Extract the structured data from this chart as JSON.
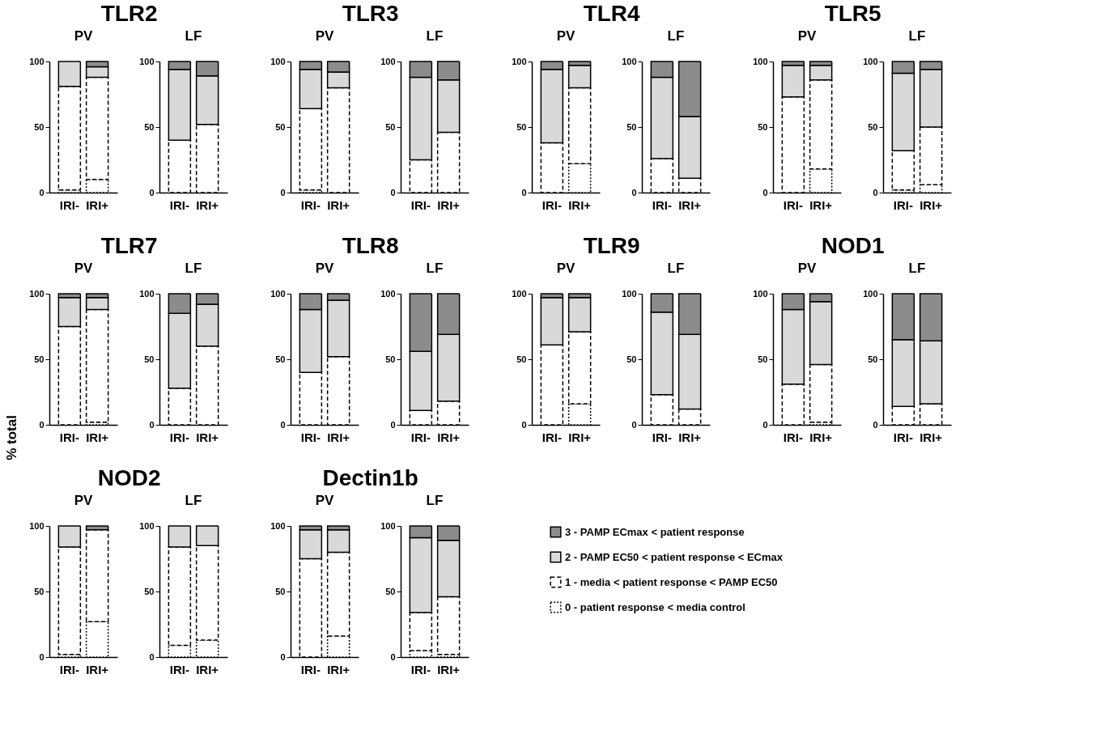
{
  "chart_data": [
    {
      "type": "bar",
      "title": "TLR2",
      "subtitle": "PV",
      "stacked": true,
      "legend": "bottom right",
      "categories": [
        "IRI-",
        "IRI+"
      ],
      "ylim": [
        0,
        100
      ],
      "yticks": [
        0,
        50,
        100
      ],
      "series": [
        {
          "name": "0 - patient response < media control",
          "color": "#ffffff",
          "line_style": "dotted",
          "values": [
            2,
            10
          ]
        },
        {
          "name": "1 - media < patient response < PAMP EC50",
          "color": "#ffffff",
          "line_style": "dashed",
          "values": [
            79,
            78
          ]
        },
        {
          "name": "2 - PAMP EC50 < patient response < ECmax",
          "color": "#d9d9d9",
          "line_style": "solid",
          "values": [
            19,
            8
          ]
        },
        {
          "name": "3 - PAMP ECmax < patient response",
          "color": "#8c8c8c",
          "line_style": "solid",
          "values": [
            0,
            4
          ]
        }
      ]
    },
    {
      "type": "bar",
      "subtitle": "LF",
      "stacked": true,
      "categories": [
        "IRI-",
        "IRI+"
      ],
      "ylim": [
        0,
        100
      ],
      "yticks": [
        0,
        50,
        100
      ],
      "series": [
        {
          "name": "0 - patient response < media control",
          "color": "#ffffff",
          "line_style": "dotted",
          "values": [
            0,
            0
          ]
        },
        {
          "name": "1 - media < patient response < PAMP EC50",
          "color": "#ffffff",
          "line_style": "dashed",
          "values": [
            40,
            52
          ]
        },
        {
          "name": "2 - PAMP EC50 < patient response < ECmax",
          "color": "#d9d9d9",
          "line_style": "solid",
          "values": [
            54,
            37
          ]
        },
        {
          "name": "3 - PAMP ECmax < patient response",
          "color": "#8c8c8c",
          "line_style": "solid",
          "values": [
            6,
            11
          ]
        }
      ]
    },
    {
      "type": "bar",
      "title": "TLR3",
      "subtitle": "PV",
      "stacked": true,
      "categories": [
        "IRI-",
        "IRI+"
      ],
      "ylim": [
        0,
        100
      ],
      "yticks": [
        0,
        50,
        100
      ],
      "series": [
        {
          "name": "0 - patient response < media control",
          "color": "#ffffff",
          "line_style": "dotted",
          "values": [
            2,
            0
          ]
        },
        {
          "name": "1 - media < patient response < PAMP EC50",
          "color": "#ffffff",
          "line_style": "dashed",
          "values": [
            62,
            80
          ]
        },
        {
          "name": "2 - PAMP EC50 < patient response < ECmax",
          "color": "#d9d9d9",
          "line_style": "solid",
          "values": [
            30,
            12
          ]
        },
        {
          "name": "3 - PAMP ECmax < patient response",
          "color": "#8c8c8c",
          "line_style": "solid",
          "values": [
            6,
            8
          ]
        }
      ]
    },
    {
      "type": "bar",
      "subtitle": "LF",
      "stacked": true,
      "categories": [
        "IRI-",
        "IRI+"
      ],
      "ylim": [
        0,
        100
      ],
      "yticks": [
        0,
        50,
        100
      ],
      "series": [
        {
          "name": "0 - patient response < media control",
          "color": "#ffffff",
          "line_style": "dotted",
          "values": [
            0,
            0
          ]
        },
        {
          "name": "1 - media < patient response < PAMP EC50",
          "color": "#ffffff",
          "line_style": "dashed",
          "values": [
            25,
            46
          ]
        },
        {
          "name": "2 - PAMP EC50 < patient response < ECmax",
          "color": "#d9d9d9",
          "line_style": "solid",
          "values": [
            63,
            40
          ]
        },
        {
          "name": "3 - PAMP ECmax < patient response",
          "color": "#8c8c8c",
          "line_style": "solid",
          "values": [
            12,
            14
          ]
        }
      ]
    },
    {
      "type": "bar",
      "title": "TLR4",
      "subtitle": "PV",
      "stacked": true,
      "categories": [
        "IRI-",
        "IRI+"
      ],
      "ylim": [
        0,
        100
      ],
      "yticks": [
        0,
        50,
        100
      ],
      "series": [
        {
          "name": "0 - patient response < media control",
          "color": "#ffffff",
          "line_style": "dotted",
          "values": [
            0,
            22
          ]
        },
        {
          "name": "1 - media < patient response < PAMP EC50",
          "color": "#ffffff",
          "line_style": "dashed",
          "values": [
            38,
            58
          ]
        },
        {
          "name": "2 - PAMP EC50 < patient response < ECmax",
          "color": "#d9d9d9",
          "line_style": "solid",
          "values": [
            56,
            17
          ]
        },
        {
          "name": "3 - PAMP ECmax < patient response",
          "color": "#8c8c8c",
          "line_style": "solid",
          "values": [
            6,
            3
          ]
        }
      ]
    },
    {
      "type": "bar",
      "subtitle": "LF",
      "stacked": true,
      "categories": [
        "IRI-",
        "IRI+"
      ],
      "ylim": [
        0,
        100
      ],
      "yticks": [
        0,
        50,
        100
      ],
      "series": [
        {
          "name": "0 - patient response < media control",
          "color": "#ffffff",
          "line_style": "dotted",
          "values": [
            0,
            0
          ]
        },
        {
          "name": "1 - media < patient response < PAMP EC50",
          "color": "#ffffff",
          "line_style": "dashed",
          "values": [
            26,
            11
          ]
        },
        {
          "name": "2 - PAMP EC50 < patient response < ECmax",
          "color": "#d9d9d9",
          "line_style": "solid",
          "values": [
            62,
            47
          ]
        },
        {
          "name": "3 - PAMP ECmax < patient response",
          "color": "#8c8c8c",
          "line_style": "solid",
          "values": [
            12,
            42
          ]
        }
      ]
    },
    {
      "type": "bar",
      "title": "TLR5",
      "subtitle": "PV",
      "stacked": true,
      "categories": [
        "IRI-",
        "IRI+"
      ],
      "ylim": [
        0,
        100
      ],
      "yticks": [
        0,
        50,
        100
      ],
      "series": [
        {
          "name": "0 - patient response < media control",
          "color": "#ffffff",
          "line_style": "dotted",
          "values": [
            0,
            18
          ]
        },
        {
          "name": "1 - media < patient response < PAMP EC50",
          "color": "#ffffff",
          "line_style": "dashed",
          "values": [
            73,
            68
          ]
        },
        {
          "name": "2 - PAMP EC50 < patient response < ECmax",
          "color": "#d9d9d9",
          "line_style": "solid",
          "values": [
            24,
            11
          ]
        },
        {
          "name": "3 - PAMP ECmax < patient response",
          "color": "#8c8c8c",
          "line_style": "solid",
          "values": [
            3,
            3
          ]
        }
      ]
    },
    {
      "type": "bar",
      "subtitle": "LF",
      "stacked": true,
      "categories": [
        "IRI-",
        "IRI+"
      ],
      "ylim": [
        0,
        100
      ],
      "yticks": [
        0,
        50,
        100
      ],
      "series": [
        {
          "name": "0 - patient response < media control",
          "color": "#ffffff",
          "line_style": "dotted",
          "values": [
            2,
            6
          ]
        },
        {
          "name": "1 - media < patient response < PAMP EC50",
          "color": "#ffffff",
          "line_style": "dashed",
          "values": [
            30,
            44
          ]
        },
        {
          "name": "2 - PAMP EC50 < patient response < ECmax",
          "color": "#d9d9d9",
          "line_style": "solid",
          "values": [
            59,
            44
          ]
        },
        {
          "name": "3 - PAMP ECmax < patient response",
          "color": "#8c8c8c",
          "line_style": "solid",
          "values": [
            9,
            6
          ]
        }
      ]
    },
    {
      "type": "bar",
      "title": "TLR7",
      "subtitle": "PV",
      "ylabel": "% total",
      "stacked": true,
      "categories": [
        "IRI-",
        "IRI+"
      ],
      "ylim": [
        0,
        100
      ],
      "yticks": [
        0,
        50,
        100
      ],
      "series": [
        {
          "name": "0 - patient response < media control",
          "color": "#ffffff",
          "line_style": "dotted",
          "values": [
            0,
            2
          ]
        },
        {
          "name": "1 - media < patient response < PAMP EC50",
          "color": "#ffffff",
          "line_style": "dashed",
          "values": [
            75,
            86
          ]
        },
        {
          "name": "2 - PAMP EC50 < patient response < ECmax",
          "color": "#d9d9d9",
          "line_style": "solid",
          "values": [
            22,
            9
          ]
        },
        {
          "name": "3 - PAMP ECmax < patient response",
          "color": "#8c8c8c",
          "line_style": "solid",
          "values": [
            3,
            3
          ]
        }
      ]
    },
    {
      "type": "bar",
      "subtitle": "LF",
      "stacked": true,
      "categories": [
        "IRI-",
        "IRI+"
      ],
      "ylim": [
        0,
        100
      ],
      "yticks": [
        0,
        50,
        100
      ],
      "series": [
        {
          "name": "0 - patient response < media control",
          "color": "#ffffff",
          "line_style": "dotted",
          "values": [
            0,
            0
          ]
        },
        {
          "name": "1 - media < patient response < PAMP EC50",
          "color": "#ffffff",
          "line_style": "dashed",
          "values": [
            28,
            60
          ]
        },
        {
          "name": "2 - PAMP EC50 < patient response < ECmax",
          "color": "#d9d9d9",
          "line_style": "solid",
          "values": [
            57,
            32
          ]
        },
        {
          "name": "3 - PAMP ECmax < patient response",
          "color": "#8c8c8c",
          "line_style": "solid",
          "values": [
            15,
            8
          ]
        }
      ]
    },
    {
      "type": "bar",
      "title": "TLR8",
      "subtitle": "PV",
      "stacked": true,
      "categories": [
        "IRI-",
        "IRI+"
      ],
      "ylim": [
        0,
        100
      ],
      "yticks": [
        0,
        50,
        100
      ],
      "series": [
        {
          "name": "0 - patient response < media control",
          "color": "#ffffff",
          "line_style": "dotted",
          "values": [
            0,
            0
          ]
        },
        {
          "name": "1 - media < patient response < PAMP EC50",
          "color": "#ffffff",
          "line_style": "dashed",
          "values": [
            40,
            52
          ]
        },
        {
          "name": "2 - PAMP EC50 < patient response < ECmax",
          "color": "#d9d9d9",
          "line_style": "solid",
          "values": [
            48,
            43
          ]
        },
        {
          "name": "3 - PAMP ECmax < patient response",
          "color": "#8c8c8c",
          "line_style": "solid",
          "values": [
            12,
            5
          ]
        }
      ]
    },
    {
      "type": "bar",
      "subtitle": "LF",
      "stacked": true,
      "categories": [
        "IRI-",
        "IRI+"
      ],
      "ylim": [
        0,
        100
      ],
      "yticks": [
        0,
        50,
        100
      ],
      "series": [
        {
          "name": "0 - patient response < media control",
          "color": "#ffffff",
          "line_style": "dotted",
          "values": [
            0,
            0
          ]
        },
        {
          "name": "1 - media < patient response < PAMP EC50",
          "color": "#ffffff",
          "line_style": "dashed",
          "values": [
            11,
            18
          ]
        },
        {
          "name": "2 - PAMP EC50 < patient response < ECmax",
          "color": "#d9d9d9",
          "line_style": "solid",
          "values": [
            45,
            51
          ]
        },
        {
          "name": "3 - PAMP ECmax < patient response",
          "color": "#8c8c8c",
          "line_style": "solid",
          "values": [
            44,
            31
          ]
        }
      ]
    },
    {
      "type": "bar",
      "title": "TLR9",
      "subtitle": "PV",
      "stacked": true,
      "categories": [
        "IRI-",
        "IRI+"
      ],
      "ylim": [
        0,
        100
      ],
      "yticks": [
        0,
        50,
        100
      ],
      "series": [
        {
          "name": "0 - patient response < media control",
          "color": "#ffffff",
          "line_style": "dotted",
          "values": [
            0,
            16
          ]
        },
        {
          "name": "1 - media < patient response < PAMP EC50",
          "color": "#ffffff",
          "line_style": "dashed",
          "values": [
            61,
            55
          ]
        },
        {
          "name": "2 - PAMP EC50 < patient response < ECmax",
          "color": "#d9d9d9",
          "line_style": "solid",
          "values": [
            36,
            26
          ]
        },
        {
          "name": "3 - PAMP ECmax < patient response",
          "color": "#8c8c8c",
          "line_style": "solid",
          "values": [
            3,
            3
          ]
        }
      ]
    },
    {
      "type": "bar",
      "subtitle": "LF",
      "stacked": true,
      "categories": [
        "IRI-",
        "IRI+"
      ],
      "ylim": [
        0,
        100
      ],
      "yticks": [
        0,
        50,
        100
      ],
      "series": [
        {
          "name": "0 - patient response < media control",
          "color": "#ffffff",
          "line_style": "dotted",
          "values": [
            0,
            0
          ]
        },
        {
          "name": "1 - media < patient response < PAMP EC50",
          "color": "#ffffff",
          "line_style": "dashed",
          "values": [
            23,
            12
          ]
        },
        {
          "name": "2 - PAMP EC50 < patient response < ECmax",
          "color": "#d9d9d9",
          "line_style": "solid",
          "values": [
            63,
            57
          ]
        },
        {
          "name": "3 - PAMP ECmax < patient response",
          "color": "#8c8c8c",
          "line_style": "solid",
          "values": [
            14,
            31
          ]
        }
      ]
    },
    {
      "type": "bar",
      "title": "NOD1",
      "subtitle": "PV",
      "stacked": true,
      "categories": [
        "IRI-",
        "IRI+"
      ],
      "ylim": [
        0,
        100
      ],
      "yticks": [
        0,
        50,
        100
      ],
      "series": [
        {
          "name": "0 - patient response < media control",
          "color": "#ffffff",
          "line_style": "dotted",
          "values": [
            0,
            2
          ]
        },
        {
          "name": "1 - media < patient response < PAMP EC50",
          "color": "#ffffff",
          "line_style": "dashed",
          "values": [
            31,
            44
          ]
        },
        {
          "name": "2 - PAMP EC50 < patient response < ECmax",
          "color": "#d9d9d9",
          "line_style": "solid",
          "values": [
            57,
            48
          ]
        },
        {
          "name": "3 - PAMP ECmax < patient response",
          "color": "#8c8c8c",
          "line_style": "solid",
          "values": [
            12,
            6
          ]
        }
      ]
    },
    {
      "type": "bar",
      "subtitle": "LF",
      "stacked": true,
      "categories": [
        "IRI-",
        "IRI+"
      ],
      "ylim": [
        0,
        100
      ],
      "yticks": [
        0,
        50,
        100
      ],
      "series": [
        {
          "name": "0 - patient response < media control",
          "color": "#ffffff",
          "line_style": "dotted",
          "values": [
            0,
            0
          ]
        },
        {
          "name": "1 - media < patient response < PAMP EC50",
          "color": "#ffffff",
          "line_style": "dashed",
          "values": [
            14,
            16
          ]
        },
        {
          "name": "2 - PAMP EC50 < patient response < ECmax",
          "color": "#d9d9d9",
          "line_style": "solid",
          "values": [
            51,
            48
          ]
        },
        {
          "name": "3 - PAMP ECmax < patient response",
          "color": "#8c8c8c",
          "line_style": "solid",
          "values": [
            35,
            36
          ]
        }
      ]
    },
    {
      "type": "bar",
      "title": "NOD2",
      "subtitle": "PV",
      "stacked": true,
      "categories": [
        "IRI-",
        "IRI+"
      ],
      "ylim": [
        0,
        100
      ],
      "yticks": [
        0,
        50,
        100
      ],
      "series": [
        {
          "name": "0 - patient response < media control",
          "color": "#ffffff",
          "line_style": "dotted",
          "values": [
            2,
            27
          ]
        },
        {
          "name": "1 - media < patient response < PAMP EC50",
          "color": "#ffffff",
          "line_style": "dashed",
          "values": [
            82,
            70
          ]
        },
        {
          "name": "2 - PAMP EC50 < patient response < ECmax",
          "color": "#d9d9d9",
          "line_style": "solid",
          "values": [
            16,
            0
          ]
        },
        {
          "name": "3 - PAMP ECmax < patient response",
          "color": "#8c8c8c",
          "line_style": "solid",
          "values": [
            0,
            3
          ]
        }
      ]
    },
    {
      "type": "bar",
      "subtitle": "LF",
      "stacked": true,
      "categories": [
        "IRI-",
        "IRI+"
      ],
      "ylim": [
        0,
        100
      ],
      "yticks": [
        0,
        50,
        100
      ],
      "series": [
        {
          "name": "0 - patient response < media control",
          "color": "#ffffff",
          "line_style": "dotted",
          "values": [
            9,
            13
          ]
        },
        {
          "name": "1 - media < patient response < PAMP EC50",
          "color": "#ffffff",
          "line_style": "dashed",
          "values": [
            75,
            72
          ]
        },
        {
          "name": "2 - PAMP EC50 < patient response < ECmax",
          "color": "#d9d9d9",
          "line_style": "solid",
          "values": [
            16,
            15
          ]
        },
        {
          "name": "3 - PAMP ECmax < patient response",
          "color": "#8c8c8c",
          "line_style": "solid",
          "values": [
            0,
            0
          ]
        }
      ]
    },
    {
      "type": "bar",
      "title": "Dectin1b",
      "subtitle": "PV",
      "stacked": true,
      "categories": [
        "IRI-",
        "IRI+"
      ],
      "ylim": [
        0,
        100
      ],
      "yticks": [
        0,
        50,
        100
      ],
      "series": [
        {
          "name": "0 - patient response < media control",
          "color": "#ffffff",
          "line_style": "dotted",
          "values": [
            0,
            16
          ]
        },
        {
          "name": "1 - media < patient response < PAMP EC50",
          "color": "#ffffff",
          "line_style": "dashed",
          "values": [
            75,
            64
          ]
        },
        {
          "name": "2 - PAMP EC50 < patient response < ECmax",
          "color": "#d9d9d9",
          "line_style": "solid",
          "values": [
            22,
            17
          ]
        },
        {
          "name": "3 - PAMP ECmax < patient response",
          "color": "#8c8c8c",
          "line_style": "solid",
          "values": [
            3,
            3
          ]
        }
      ]
    },
    {
      "type": "bar",
      "subtitle": "LF",
      "stacked": true,
      "categories": [
        "IRI-",
        "IRI+"
      ],
      "ylim": [
        0,
        100
      ],
      "yticks": [
        0,
        50,
        100
      ],
      "series": [
        {
          "name": "0 - patient response < media control",
          "color": "#ffffff",
          "line_style": "dotted",
          "values": [
            5,
            2
          ]
        },
        {
          "name": "1 - media < patient response < PAMP EC50",
          "color": "#ffffff",
          "line_style": "dashed",
          "values": [
            29,
            44
          ]
        },
        {
          "name": "2 - PAMP EC50 < patient response < ECmax",
          "color": "#d9d9d9",
          "line_style": "solid",
          "values": [
            57,
            43
          ]
        },
        {
          "name": "3 - PAMP ECmax < patient response",
          "color": "#8c8c8c",
          "line_style": "solid",
          "values": [
            9,
            11
          ]
        }
      ]
    }
  ]
}
